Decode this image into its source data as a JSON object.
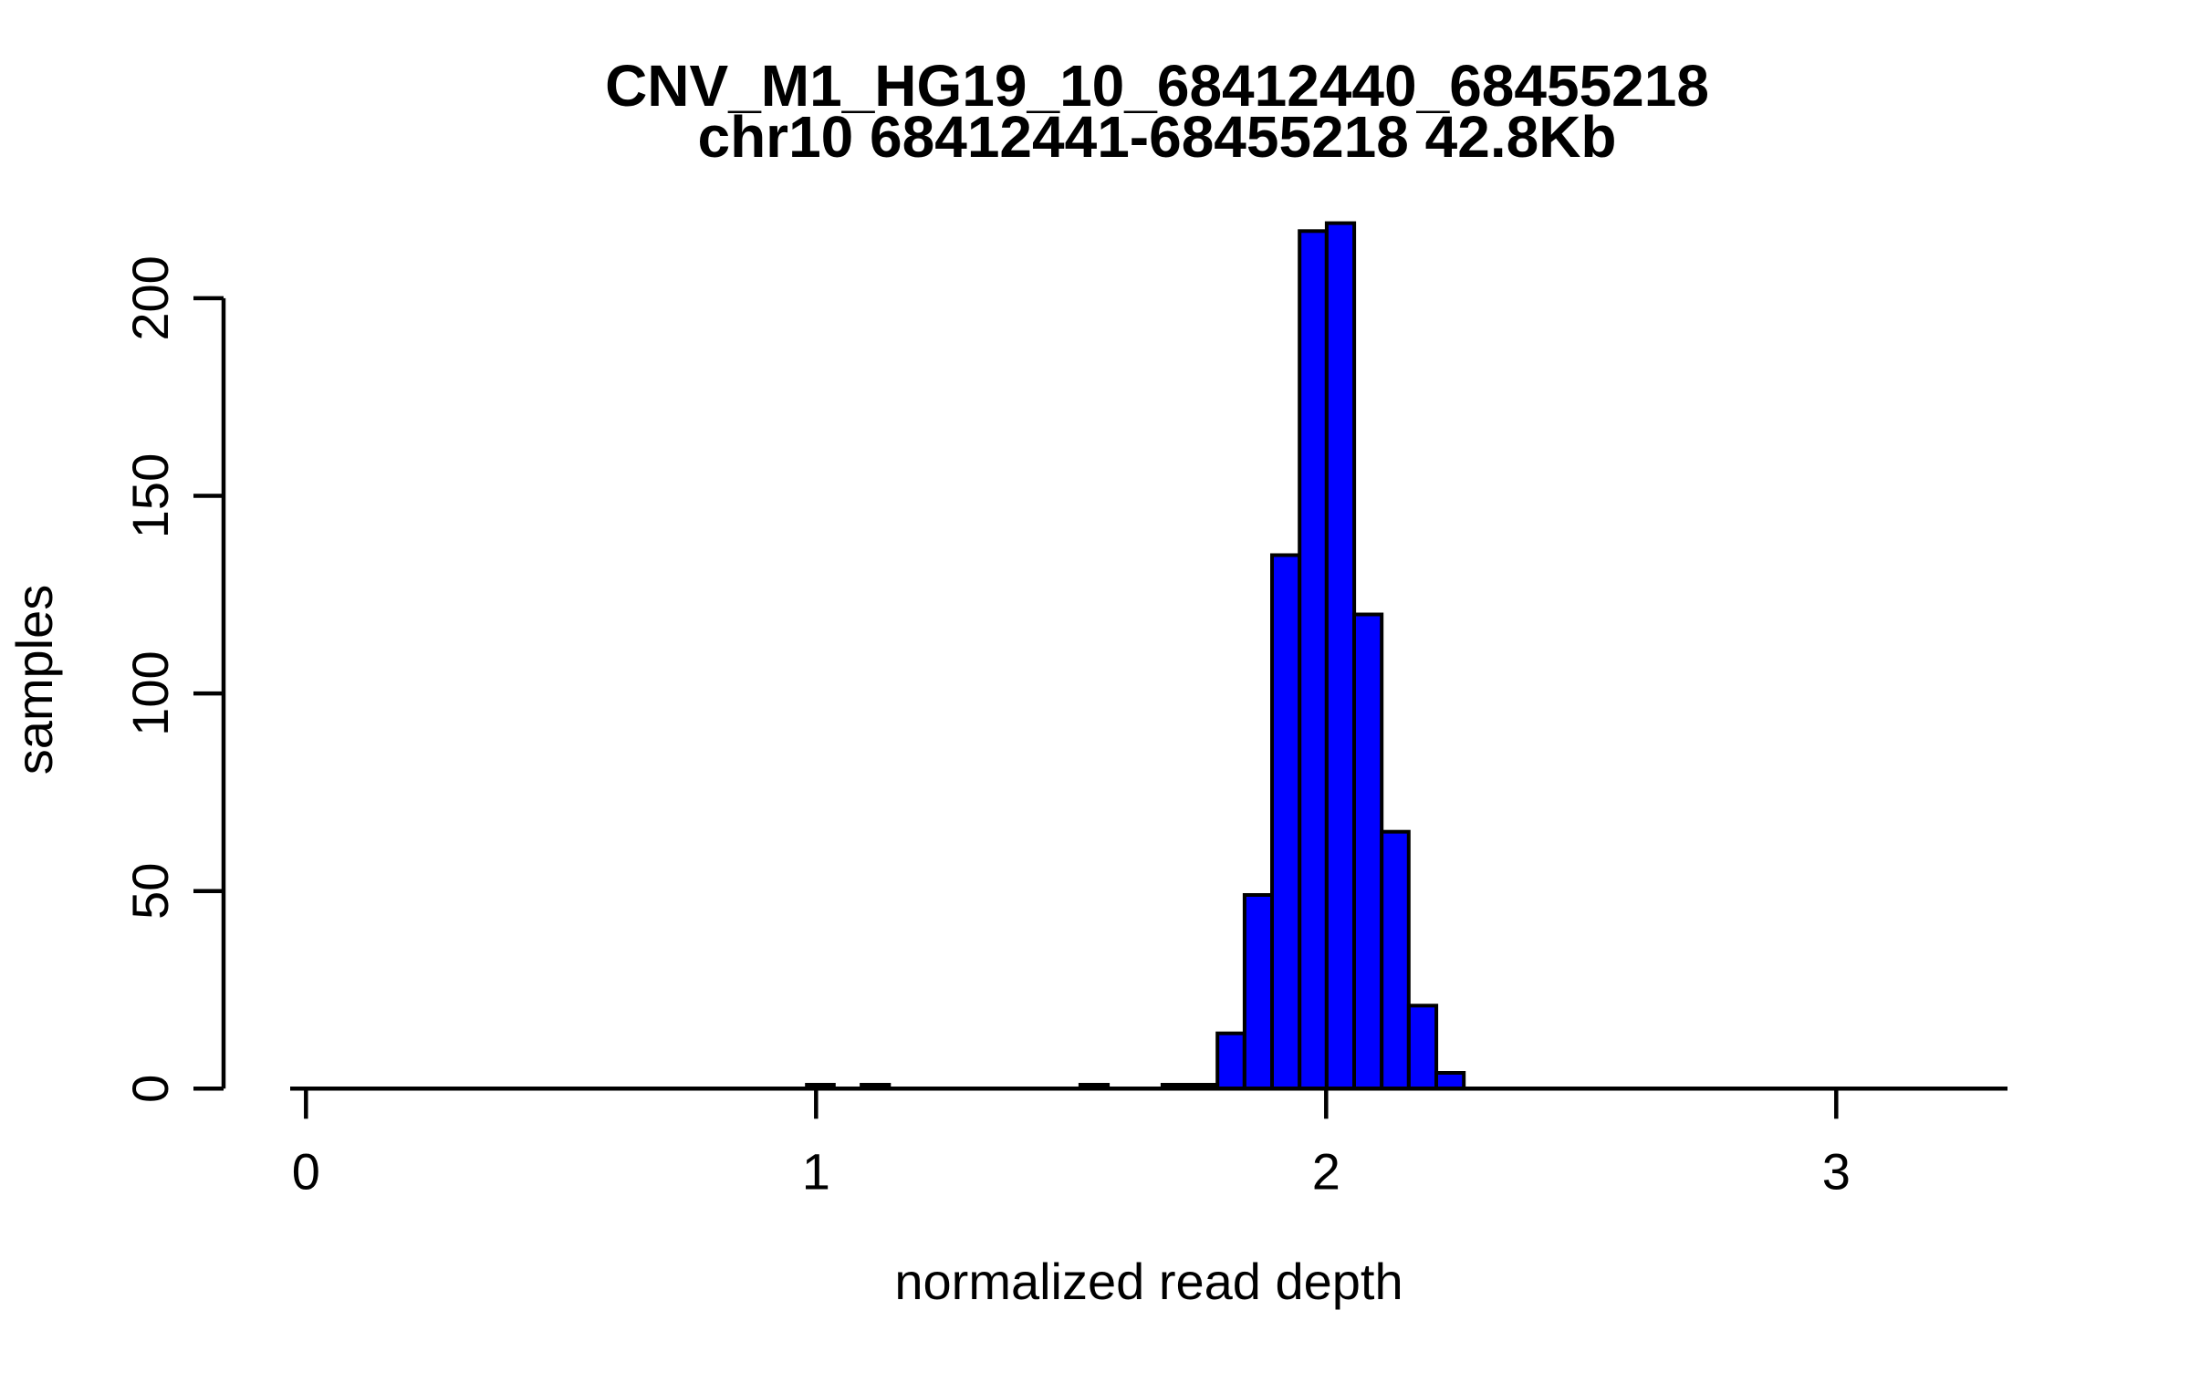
{
  "page": {
    "background_color": "#ffffff",
    "accent_color": "#0000ff"
  },
  "chart_data": {
    "type": "bar",
    "subtype": "histogram",
    "title": "CNV_M1_HG19_10_68412440_68455218",
    "subtitle": "chr10 68412441-68455218 42.8Kb",
    "xlabel": "normalized read depth",
    "ylabel": "samples",
    "x_ticks": [
      0,
      1,
      2,
      3
    ],
    "y_ticks": [
      0,
      50,
      100,
      150,
      200
    ],
    "xlim": [
      -0.03,
      3.34
    ],
    "ylim": [
      0,
      220
    ],
    "grid": false,
    "legend": false,
    "bar_fill": "#0000ff",
    "bar_stroke": "#000000",
    "axis_color": "#000000",
    "bin_width": 0.054,
    "bins": [
      {
        "start": 0.982,
        "end": 1.035,
        "count": 1
      },
      {
        "start": 1.089,
        "end": 1.143,
        "count": 1
      },
      {
        "start": 1.518,
        "end": 1.572,
        "count": 1
      },
      {
        "start": 1.679,
        "end": 1.733,
        "count": 1
      },
      {
        "start": 1.733,
        "end": 1.787,
        "count": 1
      },
      {
        "start": 1.787,
        "end": 1.84,
        "count": 14
      },
      {
        "start": 1.84,
        "end": 1.894,
        "count": 49
      },
      {
        "start": 1.894,
        "end": 1.948,
        "count": 135
      },
      {
        "start": 1.948,
        "end": 2.001,
        "count": 217
      },
      {
        "start": 2.001,
        "end": 2.055,
        "count": 219
      },
      {
        "start": 2.055,
        "end": 2.109,
        "count": 120
      },
      {
        "start": 2.109,
        "end": 2.162,
        "count": 65
      },
      {
        "start": 2.162,
        "end": 2.216,
        "count": 21
      },
      {
        "start": 2.216,
        "end": 2.27,
        "count": 4
      }
    ]
  }
}
